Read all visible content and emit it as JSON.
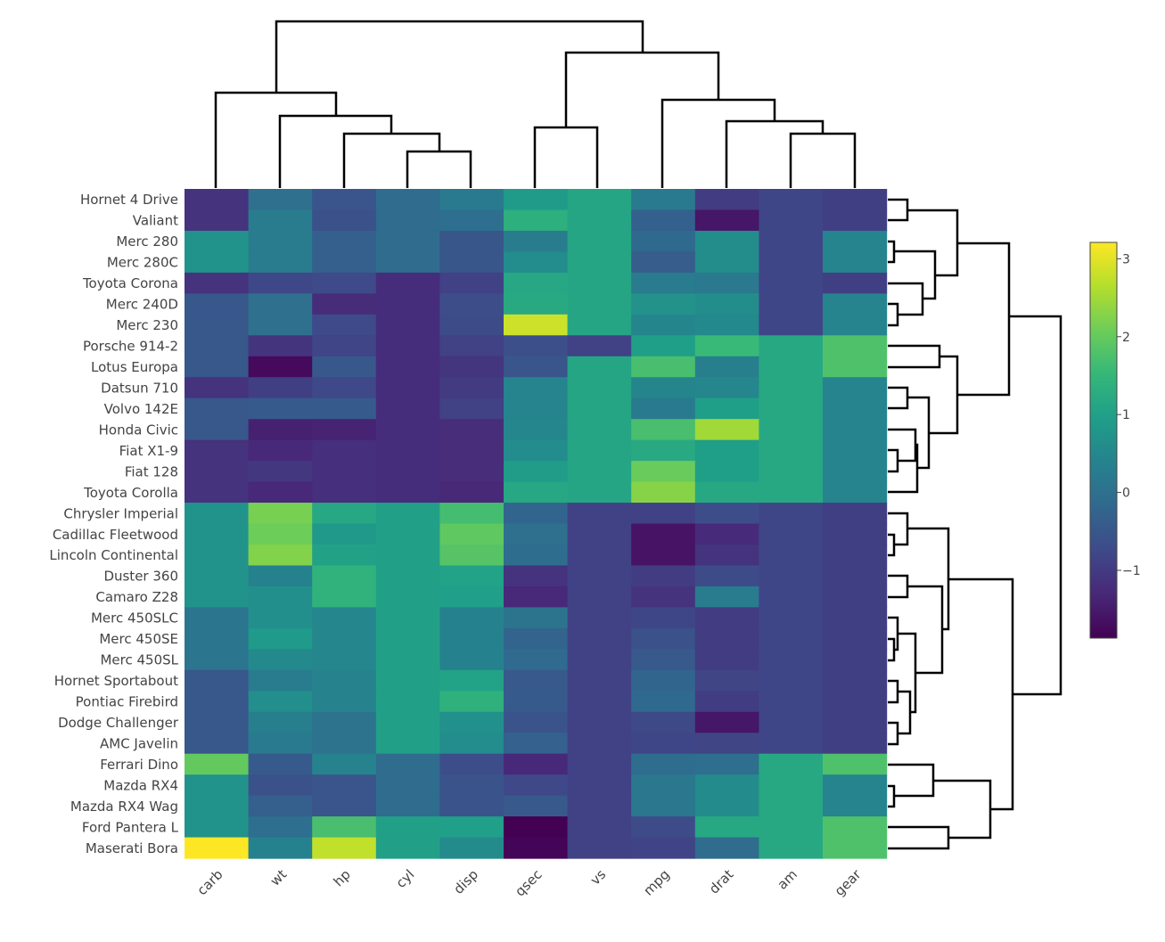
{
  "chart_data": {
    "type": "heatmap",
    "title": "",
    "columns": [
      "carb",
      "wt",
      "hp",
      "cyl",
      "disp",
      "qsec",
      "vs",
      "mpg",
      "drat",
      "am",
      "gear"
    ],
    "rows": [
      "Hornet 4 Drive",
      "Valiant",
      "Merc 280",
      "Merc 280C",
      "Toyota Corona",
      "Merc 240D",
      "Merc 230",
      "Porsche 914-2",
      "Lotus Europa",
      "Datsun 710",
      "Volvo 142E",
      "Honda Civic",
      "Fiat X1-9",
      "Fiat 128",
      "Toyota Corolla",
      "Chrysler Imperial",
      "Cadillac Fleetwood",
      "Lincoln Continental",
      "Duster 360",
      "Camaro Z28",
      "Merc 450SLC",
      "Merc 450SE",
      "Merc 450SL",
      "Hornet Sportabout",
      "Pontiac Firebird",
      "Dodge Challenger",
      "AMC Javelin",
      "Ferrari Dino",
      "Mazda RX4",
      "Mazda RX4 Wag",
      "Ford Pantera L",
      "Maserati Bora"
    ],
    "values": [
      [
        -1.12,
        -0.0,
        -0.54,
        -0.1,
        0.22,
        0.89,
        1.12,
        0.22,
        -0.97,
        -0.81,
        -0.93
      ],
      [
        -1.12,
        0.23,
        -0.61,
        -0.1,
        -0.05,
        1.33,
        1.12,
        -0.33,
        -1.56,
        -0.81,
        -0.93
      ],
      [
        0.74,
        0.23,
        -0.35,
        -0.1,
        -0.51,
        0.25,
        1.12,
        -0.15,
        0.61,
        -0.81,
        0.42
      ],
      [
        0.74,
        0.23,
        -0.35,
        -0.1,
        -0.51,
        0.59,
        1.12,
        -0.38,
        0.61,
        -0.81,
        0.42
      ],
      [
        -1.12,
        -0.77,
        -0.74,
        -1.22,
        -0.89,
        1.15,
        1.12,
        0.23,
        0.19,
        -0.81,
        -0.93
      ],
      [
        -0.5,
        0.0,
        -1.24,
        -1.22,
        -0.68,
        1.2,
        1.12,
        0.72,
        0.61,
        -0.81,
        0.42
      ],
      [
        -0.5,
        -0.0,
        -0.75,
        -1.22,
        -0.73,
        2.83,
        1.12,
        0.45,
        0.53,
        -0.81,
        0.42
      ],
      [
        -0.5,
        -1.1,
        -0.82,
        -1.22,
        -0.89,
        -0.64,
        -0.87,
        0.98,
        1.56,
        1.19,
        1.78
      ],
      [
        -0.5,
        -1.74,
        -0.49,
        -1.22,
        -1.09,
        -0.53,
        1.12,
        1.71,
        0.32,
        1.19,
        1.78
      ],
      [
        -1.12,
        -0.92,
        -0.78,
        -1.22,
        -0.99,
        0.43,
        1.12,
        0.45,
        0.47,
        1.19,
        0.42
      ],
      [
        -0.5,
        -0.45,
        -0.45,
        -1.22,
        -0.89,
        0.43,
        1.12,
        0.22,
        0.98,
        1.19,
        0.42
      ],
      [
        -0.5,
        -1.41,
        -1.38,
        -1.22,
        -1.23,
        0.48,
        1.12,
        1.71,
        2.49,
        1.19,
        0.42
      ],
      [
        -1.12,
        -1.31,
        -1.19,
        -1.22,
        -1.23,
        0.59,
        1.12,
        1.2,
        0.98,
        1.19,
        0.42
      ],
      [
        -1.12,
        -1.04,
        -1.19,
        -1.22,
        -1.23,
        0.91,
        1.12,
        2.04,
        0.98,
        1.19,
        0.42
      ],
      [
        -1.12,
        -1.31,
        -1.19,
        -1.22,
        -1.29,
        1.15,
        1.12,
        2.29,
        1.17,
        1.19,
        0.42
      ],
      [
        0.74,
        2.17,
        1.16,
        1.01,
        1.68,
        -0.24,
        -0.87,
        -0.89,
        -0.69,
        -0.81,
        -0.93
      ],
      [
        0.74,
        2.08,
        0.85,
        1.01,
        1.95,
        -0.0,
        -0.87,
        -1.61,
        -1.25,
        -0.81,
        -0.93
      ],
      [
        0.74,
        2.26,
        1.02,
        1.01,
        1.85,
        -0.08,
        -0.87,
        -1.61,
        -1.12,
        -0.81,
        -0.93
      ],
      [
        0.74,
        0.36,
        1.41,
        1.01,
        1.04,
        -1.12,
        -0.87,
        -0.96,
        -0.72,
        -0.81,
        -0.93
      ],
      [
        0.74,
        0.64,
        1.41,
        1.01,
        0.97,
        -1.31,
        -0.87,
        -1.13,
        0.24,
        -0.81,
        -0.93
      ],
      [
        0.11,
        0.64,
        0.49,
        1.01,
        0.37,
        0.08,
        -0.87,
        -0.81,
        -0.98,
        -0.81,
        -0.93
      ],
      [
        0.11,
        0.87,
        0.49,
        1.01,
        0.37,
        -0.25,
        -0.87,
        -0.61,
        -0.98,
        -0.81,
        -0.93
      ],
      [
        0.11,
        0.52,
        0.49,
        1.01,
        0.37,
        -0.14,
        -0.87,
        -0.46,
        -0.98,
        -0.81,
        -0.93
      ],
      [
        -0.5,
        0.23,
        0.41,
        1.01,
        1.04,
        -0.46,
        -0.87,
        -0.23,
        -0.83,
        -0.81,
        -0.93
      ],
      [
        -0.5,
        0.64,
        0.41,
        1.01,
        1.37,
        -0.45,
        -0.87,
        -0.15,
        -0.97,
        -0.81,
        -0.93
      ],
      [
        -0.5,
        0.31,
        0.05,
        1.01,
        0.69,
        -0.55,
        -0.87,
        -0.76,
        -1.56,
        -0.81,
        -0.93
      ],
      [
        -0.5,
        0.22,
        0.05,
        1.01,
        0.59,
        -0.31,
        -0.87,
        -0.81,
        -0.83,
        -0.81,
        -0.93
      ],
      [
        1.98,
        -0.45,
        0.41,
        -0.1,
        -0.69,
        -1.31,
        -0.87,
        -0.06,
        -0.05,
        1.19,
        1.78
      ],
      [
        0.74,
        -0.61,
        -0.54,
        -0.1,
        -0.57,
        -0.78,
        -0.87,
        0.15,
        0.57,
        1.19,
        0.42
      ],
      [
        0.74,
        -0.35,
        -0.54,
        -0.1,
        -0.57,
        -0.46,
        -0.87,
        0.15,
        0.57,
        1.19,
        0.42
      ],
      [
        0.74,
        -0.05,
        1.71,
        1.01,
        0.97,
        -1.87,
        -0.87,
        -0.71,
        1.17,
        1.19,
        1.78
      ],
      [
        3.21,
        0.36,
        2.75,
        1.01,
        0.57,
        -1.82,
        -0.87,
        -0.84,
        -0.1,
        1.19,
        1.78
      ]
    ],
    "colorscale": "Viridis",
    "zmin": -1.87,
    "zmax": 3.21,
    "colorbar": {
      "ticks": [
        3,
        2,
        1,
        0,
        -1
      ],
      "tick_labels": [
        "3",
        "2",
        "1",
        "0",
        "−1"
      ]
    },
    "column_dendrogram": {
      "position": "top",
      "leaf_count": 11
    },
    "row_dendrogram": {
      "position": "right",
      "leaf_count": 32
    }
  }
}
